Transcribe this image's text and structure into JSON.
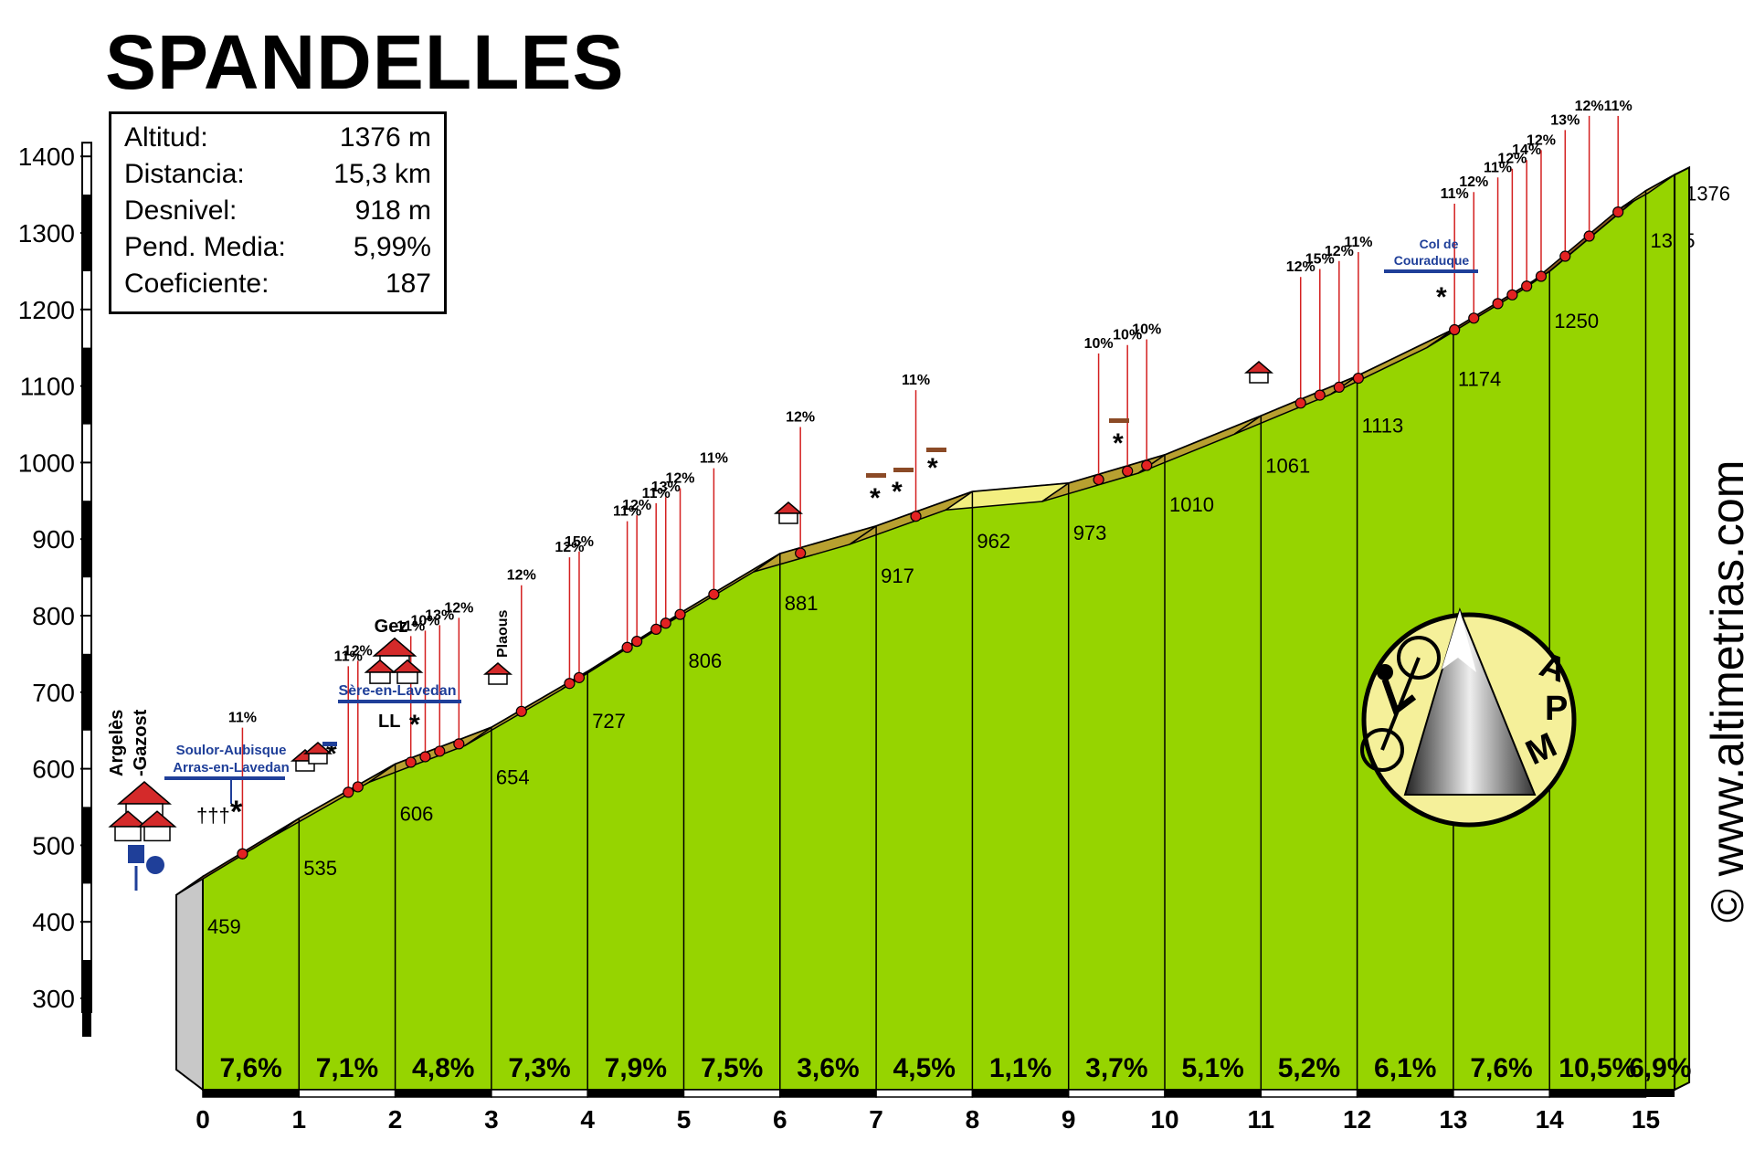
{
  "title": "SPANDELLES",
  "stats": [
    {
      "label": "Altitud:",
      "value": "1376 m"
    },
    {
      "label": "Distancia:",
      "value": "15,3 km"
    },
    {
      "label": "Desnivel:",
      "value": "918 m"
    },
    {
      "label": "Pend. Media:",
      "value": "5,99%"
    },
    {
      "label": "Coeficiente:",
      "value": "187"
    }
  ],
  "watermark": "© www.altimetrias.com",
  "logo_text": [
    "A",
    "P",
    "M"
  ],
  "places": {
    "start": [
      "Argelès",
      "-Gazost"
    ],
    "gez": "Gez",
    "plaous": "Plaous",
    "sere": "Sère-en-Lavedan",
    "soulor": [
      "Soulor-Aubisque",
      "Arras-en-Lavedan"
    ],
    "col": [
      "Col de",
      "Couraduque"
    ]
  },
  "chart_data": {
    "type": "area",
    "title": "SPANDELLES",
    "xlabel": "",
    "ylabel": "",
    "xlim": [
      0,
      15.3
    ],
    "ylim": [
      300,
      1400
    ],
    "yticks": [
      300,
      400,
      500,
      600,
      700,
      800,
      900,
      1000,
      1100,
      1200,
      1300,
      1400
    ],
    "xticks": [
      0,
      1,
      2,
      3,
      4,
      5,
      6,
      7,
      8,
      9,
      10,
      11,
      12,
      13,
      14,
      15
    ],
    "profile": [
      {
        "km": 0,
        "alt": 459
      },
      {
        "km": 1,
        "alt": 535
      },
      {
        "km": 2,
        "alt": 606
      },
      {
        "km": 3,
        "alt": 654
      },
      {
        "km": 4,
        "alt": 727
      },
      {
        "km": 5,
        "alt": 806
      },
      {
        "km": 6,
        "alt": 881
      },
      {
        "km": 7,
        "alt": 917
      },
      {
        "km": 8,
        "alt": 962
      },
      {
        "km": 9,
        "alt": 973
      },
      {
        "km": 10,
        "alt": 1010
      },
      {
        "km": 11,
        "alt": 1061
      },
      {
        "km": 12,
        "alt": 1113
      },
      {
        "km": 13,
        "alt": 1174
      },
      {
        "km": 14,
        "alt": 1250
      },
      {
        "km": 15,
        "alt": 1355
      },
      {
        "km": 15.3,
        "alt": 1376
      }
    ],
    "segment_gradients": [
      "7,6%",
      "7,1%",
      "4,8%",
      "7,3%",
      "7,9%",
      "7,5%",
      "3,6%",
      "4,5%",
      "1,1%",
      "3,7%",
      "5,1%",
      "5,2%",
      "6,1%",
      "7,6%",
      "10,5%",
      "6,9%"
    ],
    "steep_sections": [
      {
        "km": 0.55,
        "pct": "11%"
      },
      {
        "km": 1.65,
        "pct": "11%"
      },
      {
        "km": 1.75,
        "pct": "12%"
      },
      {
        "km": 2.3,
        "pct": "11%"
      },
      {
        "km": 2.45,
        "pct": "10%"
      },
      {
        "km": 2.6,
        "pct": "13%"
      },
      {
        "km": 2.8,
        "pct": "12%"
      },
      {
        "km": 3.45,
        "pct": "12%"
      },
      {
        "km": 3.95,
        "pct": "12%"
      },
      {
        "km": 4.05,
        "pct": "15%"
      },
      {
        "km": 4.55,
        "pct": "11%"
      },
      {
        "km": 4.65,
        "pct": "12%"
      },
      {
        "km": 4.85,
        "pct": "11%"
      },
      {
        "km": 4.95,
        "pct": "13%"
      },
      {
        "km": 5.1,
        "pct": "12%"
      },
      {
        "km": 5.45,
        "pct": "11%"
      },
      {
        "km": 6.35,
        "pct": "12%"
      },
      {
        "km": 7.55,
        "pct": "11%"
      },
      {
        "km": 9.45,
        "pct": "10%"
      },
      {
        "km": 9.75,
        "pct": "10%"
      },
      {
        "km": 9.95,
        "pct": "10%"
      },
      {
        "km": 11.55,
        "pct": "12%"
      },
      {
        "km": 11.75,
        "pct": "15%"
      },
      {
        "km": 11.95,
        "pct": "12%"
      },
      {
        "km": 12.15,
        "pct": "11%"
      },
      {
        "km": 13.15,
        "pct": "11%"
      },
      {
        "km": 13.35,
        "pct": "12%"
      },
      {
        "km": 13.6,
        "pct": "11%"
      },
      {
        "km": 13.75,
        "pct": "12%"
      },
      {
        "km": 13.9,
        "pct": "14%"
      },
      {
        "km": 14.05,
        "pct": "12%"
      },
      {
        "km": 14.3,
        "pct": "13%"
      },
      {
        "km": 14.55,
        "pct": "12%"
      },
      {
        "km": 14.85,
        "pct": "11%"
      }
    ],
    "colors": {
      "profile_fill": "#96d400",
      "slope_band": "#b8a030",
      "steep_band": "#8b5a20",
      "flat_band": "#f3ef80",
      "steep_marker": "#e32222",
      "label_line": "#d42020",
      "sign_blue": "#1f3f99",
      "arrow_brown": "#8b4a26",
      "logo_bg": "#f5f09a"
    }
  }
}
